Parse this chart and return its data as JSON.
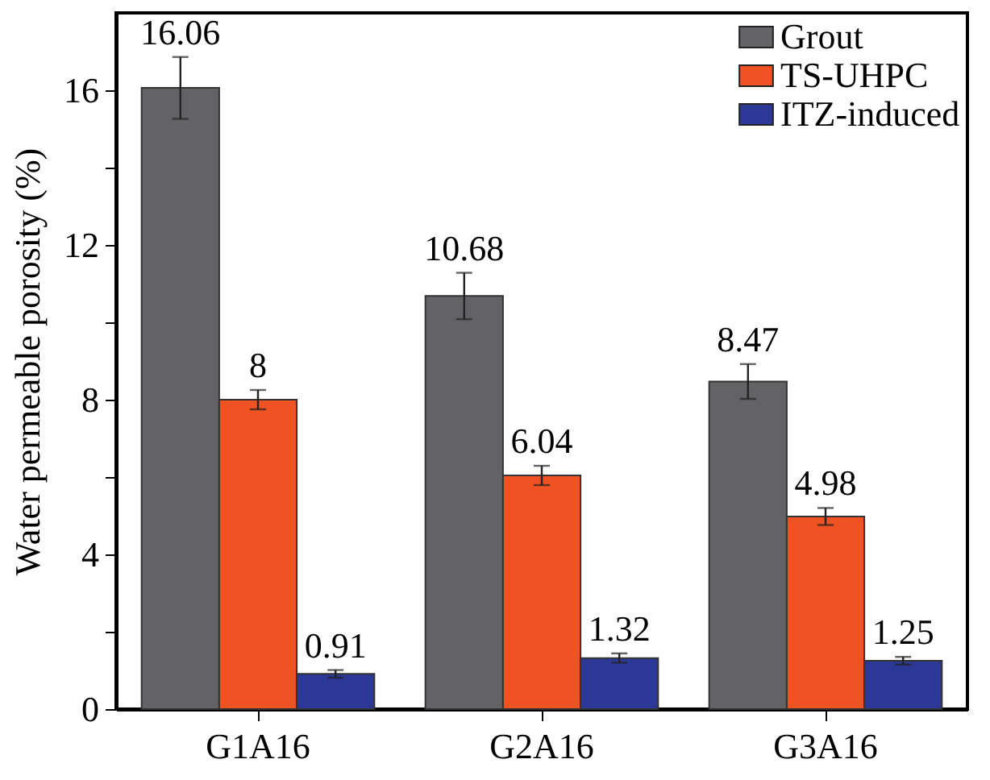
{
  "chart_data": {
    "type": "bar",
    "ylabel": "Water permeable porosity (%)",
    "categories": [
      "G1A16",
      "G2A16",
      "G3A16"
    ],
    "series": [
      {
        "name": "Grout",
        "color": "#636365",
        "values": [
          16.06,
          10.68,
          8.47
        ],
        "errors": [
          0.8,
          0.6,
          0.45
        ]
      },
      {
        "name": "TS-UHPC",
        "color": "#f05223",
        "values": [
          8,
          6.04,
          4.98
        ],
        "errors": [
          0.25,
          0.25,
          0.22
        ]
      },
      {
        "name": "ITZ-induced",
        "color": "#2c3896",
        "values": [
          0.91,
          1.32,
          1.25
        ],
        "errors": [
          0.1,
          0.12,
          0.1
        ]
      }
    ],
    "ylim": [
      0,
      18
    ],
    "yticks": [
      0,
      {
        "value": 2,
        "label": null
      },
      4,
      {
        "value": 6,
        "label": null
      },
      8,
      {
        "value": 10,
        "label": null
      },
      12,
      {
        "value": 14,
        "label": null
      },
      16
    ],
    "data_labels": true,
    "legend": "top right",
    "grid": false
  }
}
